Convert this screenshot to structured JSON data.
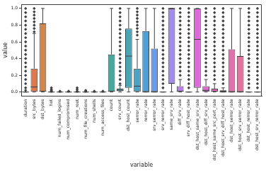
{
  "chart_data": {
    "type": "box",
    "x_label": "variable",
    "y_label": "value",
    "categories": [
      "duration",
      "src_bytes",
      "dst_bytes",
      "hot",
      "num_failed_logins",
      "num_compromised",
      "num_root",
      "num_file_creations",
      "num_shells",
      "num_access_files",
      "count",
      "srv_count",
      "dst_host_count",
      "serror_rate",
      "rerror_rate",
      "srv_serror_rate",
      "srv_rerror_rate",
      "same_srv_rate",
      "diff_srv_rate",
      "srv_diff_host_rate",
      "dst_host_same_srv_rate",
      "dst_host_diff_srv_rate",
      "dst_host_same_src_port_rate",
      "dst_host_srv_diff_host_rate",
      "dst_host_serror_rate",
      "dst_host_srv_serror_rate",
      "dst_host_rerror_rate",
      "dst_host_srv_rerror_rate"
    ],
    "colors": [
      "#e0728a",
      "#e0784a",
      "#d2864a",
      "#c09149",
      "#ac9a48",
      "#98a048",
      "#7aa647",
      "#58ab4c",
      "#47ab73",
      "#48a98d",
      "#49a79b",
      "#4aa6a7",
      "#4ba4b3",
      "#4ca2c1",
      "#4d9fd8",
      "#6a9ae9",
      "#8e93e9",
      "#a38be9",
      "#b87fe9",
      "#cf72e9",
      "#e067dc",
      "#e16ad0",
      "#e16cc3",
      "#e16fb8",
      "#e171ac",
      "#e1739f",
      "#e17494",
      "#e0728a"
    ],
    "q1": [
      0,
      0,
      0,
      0,
      0,
      0,
      0,
      0,
      0,
      0,
      0,
      0.01,
      0.05,
      0,
      0,
      0,
      0,
      0.1,
      0,
      0,
      0.05,
      0,
      0,
      0,
      0,
      0,
      0,
      0
    ],
    "median": [
      0,
      0.06,
      0.01,
      0,
      0,
      0,
      0,
      0,
      0,
      0,
      0.01,
      0.02,
      0.43,
      0.07,
      0,
      0,
      0,
      1.0,
      0.01,
      0,
      0.63,
      0.02,
      0.01,
      0,
      0,
      0,
      0,
      0
    ],
    "q3": [
      0,
      0.28,
      0.82,
      0,
      0,
      0,
      0,
      0,
      0,
      0,
      0.45,
      0.04,
      0.76,
      0.28,
      0.73,
      0.52,
      0,
      1.0,
      0.07,
      0,
      1.0,
      0.07,
      0.04,
      0.02,
      0.51,
      0.43,
      0,
      0
    ],
    "whisker_low": [
      0,
      0,
      0,
      0,
      0,
      0,
      0,
      0,
      0,
      0,
      0,
      0,
      0,
      0,
      0,
      0,
      0,
      0,
      0,
      0,
      0,
      0,
      0,
      0,
      0,
      0,
      0,
      0
    ],
    "whisker_high": [
      0,
      0.7,
      1.0,
      0,
      0,
      0,
      0,
      0,
      0,
      0,
      1.0,
      0.08,
      1.0,
      0.63,
      1.0,
      1.0,
      0,
      1.0,
      0.15,
      0,
      1.0,
      0.15,
      0.1,
      0.05,
      1.0,
      1.0,
      0,
      0
    ],
    "outliers": [
      [
        0.02,
        0.05,
        0.1,
        0.15,
        0.2,
        0.25,
        0.3,
        0.35,
        0.4,
        0.45,
        0.5,
        0.55,
        0.6,
        0.65,
        0.7,
        0.75,
        0.8,
        0.85,
        0.9,
        0.95,
        1.0
      ],
      [
        0.72,
        0.76,
        0.8,
        0.84,
        0.88,
        0.92,
        0.96,
        1.0
      ],
      [],
      [
        0.01,
        0.02,
        0.03,
        0.05
      ],
      [
        0.01
      ],
      [
        0.01
      ],
      [
        0.01,
        0.03,
        0.05
      ],
      [
        0.01,
        0.02
      ],
      [
        0.01
      ],
      [
        0.01
      ],
      [],
      [
        0.1,
        0.15,
        0.2,
        0.25,
        0.3,
        0.35,
        0.4,
        0.45,
        0.5,
        0.55,
        0.6,
        0.65,
        0.7,
        0.75,
        0.8,
        0.85,
        0.9,
        0.95,
        1.0
      ],
      [],
      [
        0.68,
        0.72,
        0.76,
        0.8,
        0.84,
        0.88,
        0.92,
        0.96,
        1.0
      ],
      [],
      [],
      [
        0.05,
        0.1,
        0.15,
        0.2,
        0.25,
        0.3,
        0.35,
        0.4,
        0.45,
        0.5,
        0.55,
        0.6,
        0.65,
        0.7,
        0.75,
        0.8,
        0.85,
        0.9,
        0.95,
        1.0
      ],
      [],
      [
        0.2,
        0.25,
        0.3,
        0.35,
        0.4,
        0.45,
        0.5,
        0.55,
        0.6,
        0.65,
        0.7,
        0.75,
        0.8,
        0.85,
        0.9,
        0.95,
        1.0
      ],
      [
        0.05,
        0.1,
        0.15,
        0.2,
        0.25,
        0.3,
        0.35,
        0.4,
        0.45,
        0.5,
        0.55,
        0.6,
        0.65,
        0.7,
        0.75,
        0.8,
        0.85,
        0.9,
        0.95,
        1.0
      ],
      [],
      [
        0.2,
        0.25,
        0.3,
        0.35,
        0.4,
        0.45,
        0.5,
        0.55,
        0.6,
        0.65,
        0.7,
        0.75,
        0.8,
        0.85,
        0.9,
        0.95,
        1.0
      ],
      [
        0.15,
        0.2,
        0.25,
        0.3,
        0.35,
        0.4,
        0.45,
        0.5,
        0.55,
        0.6,
        0.65,
        0.7,
        0.75,
        0.8,
        0.85,
        0.9,
        0.95,
        1.0
      ],
      [
        0.1,
        0.15,
        0.2,
        0.25,
        0.3,
        0.35,
        0.4,
        0.45,
        0.5,
        0.55,
        0.6,
        0.65,
        0.7,
        0.75,
        0.8,
        0.85,
        0.9,
        0.95,
        1.0
      ],
      [],
      [],
      [
        0.05,
        0.1,
        0.15,
        0.2,
        0.25,
        0.3,
        0.35,
        0.4,
        0.45,
        0.5,
        0.55,
        0.6,
        0.65,
        0.7,
        0.75,
        0.8,
        0.85,
        0.9,
        0.95,
        1.0
      ],
      [
        0.05,
        0.1,
        0.15,
        0.2,
        0.25,
        0.3,
        0.35,
        0.4,
        0.45,
        0.5,
        0.55,
        0.6,
        0.65,
        0.7,
        0.75,
        0.8,
        0.85,
        0.9,
        0.95,
        1.0
      ]
    ],
    "ylim": [
      -0.05,
      1.05
    ],
    "yticks": [
      {
        "value": 0,
        "label": "0.0"
      },
      {
        "value": 0.2,
        "label": "0.2"
      },
      {
        "value": 0.4,
        "label": "0.4"
      },
      {
        "value": 0.6,
        "label": "0.6"
      },
      {
        "value": 0.8,
        "label": "0.8"
      },
      {
        "value": 1,
        "label": "1.0"
      }
    ],
    "grid": false
  }
}
